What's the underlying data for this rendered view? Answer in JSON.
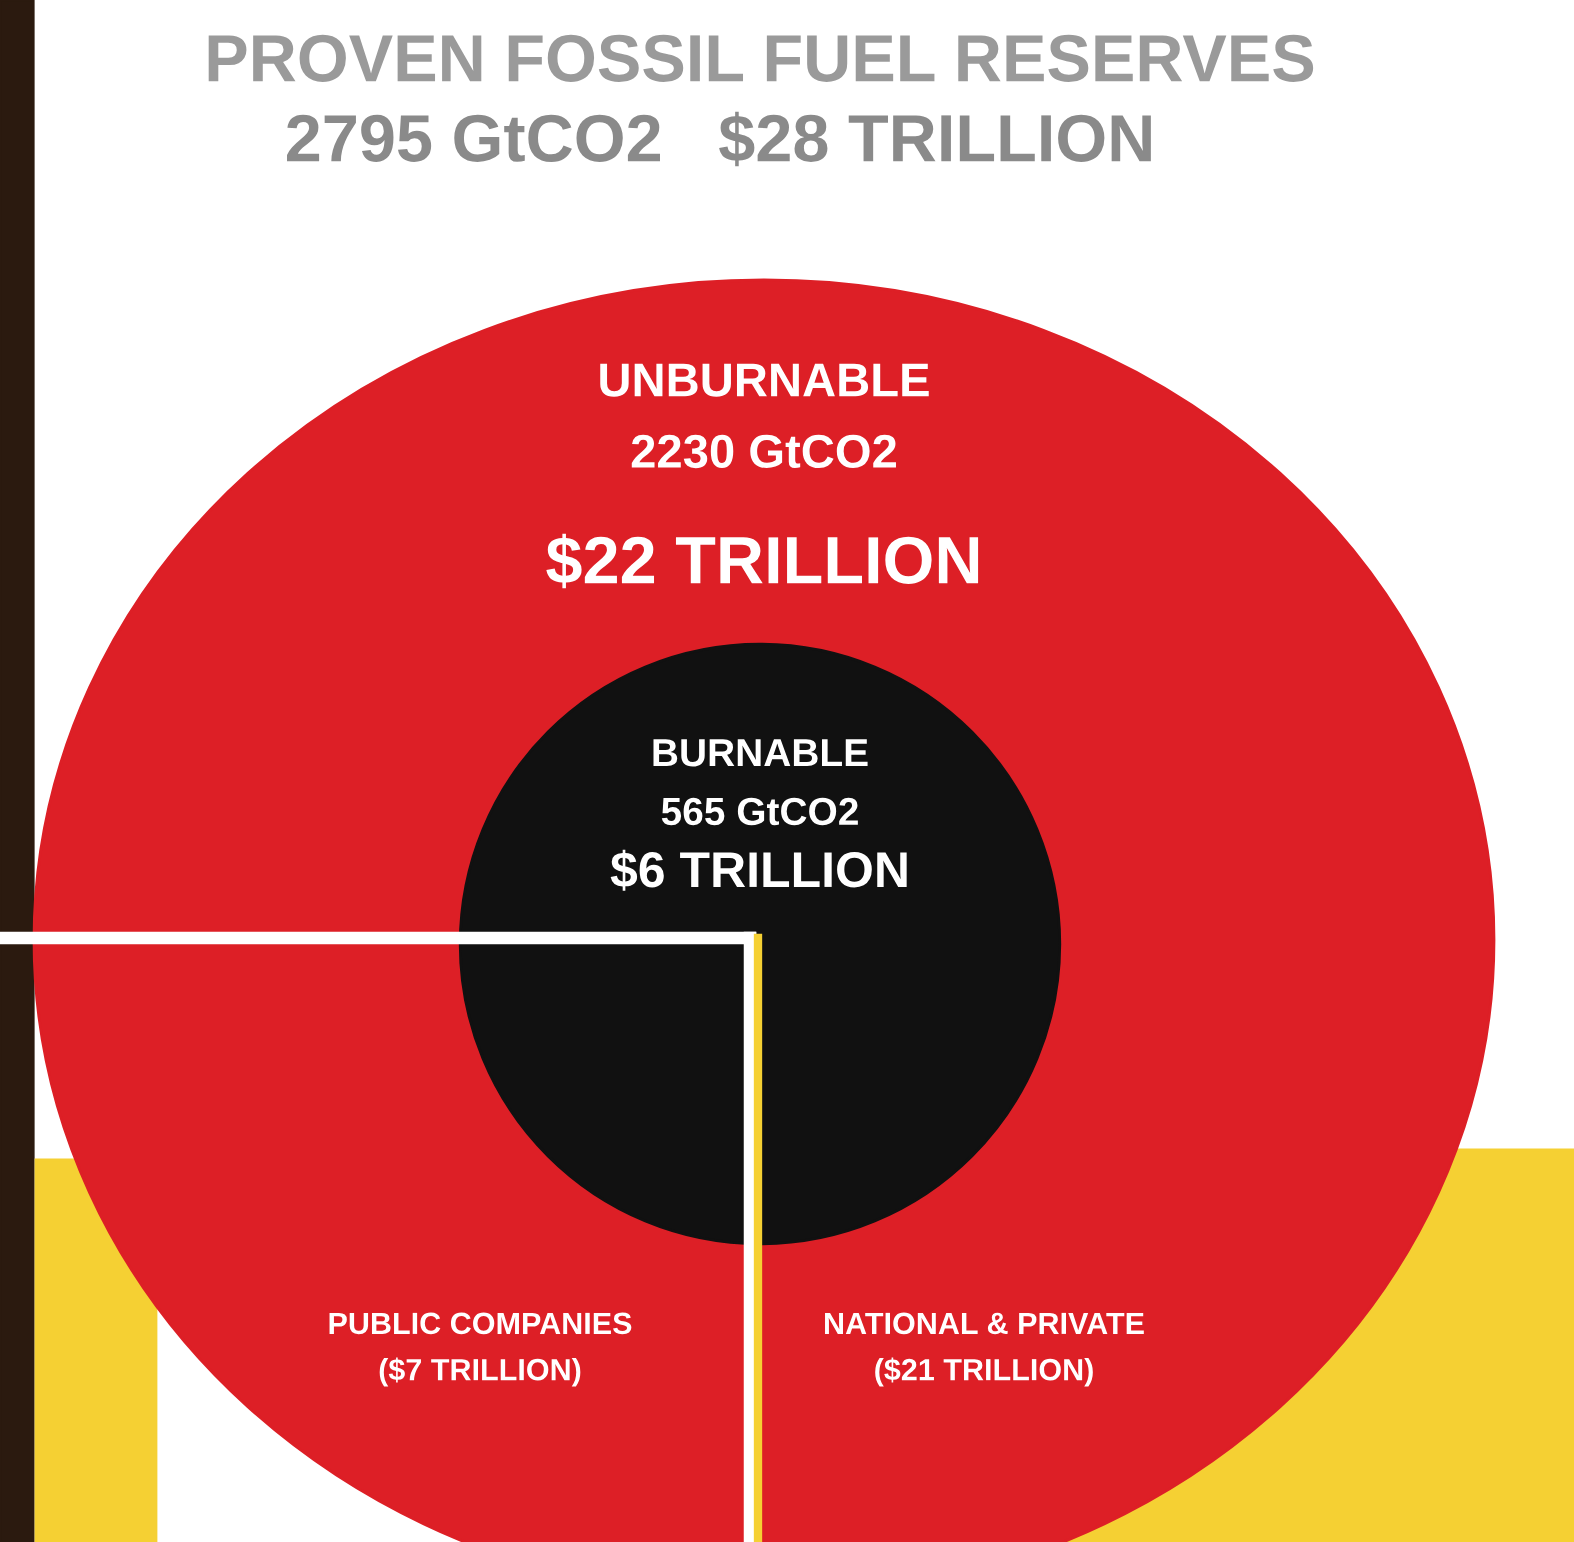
{
  "chart_data": {
    "type": "other",
    "title": "PROVEN FOSSIL FUEL RESERVES",
    "subtitle": "2795 GtCO2   $28 TRILLION",
    "categories": [
      "UNBURNABLE",
      "BURNABLE",
      "PUBLIC COMPANIES",
      "NATIONAL & PRIVATE"
    ],
    "series": [
      {
        "values": [
          2230,
          565,
          null,
          null
        ],
        "value_labels": [
          "2230 GtCO2",
          "565 GtCO2",
          null,
          null
        ]
      },
      {
        "values": [
          22,
          6,
          7,
          21
        ],
        "value_labels": [
          "$22 TRILLION",
          "$6 TRILLION",
          "($7 TRILLION)",
          "($21 TRILLION)"
        ]
      }
    ]
  }
}
